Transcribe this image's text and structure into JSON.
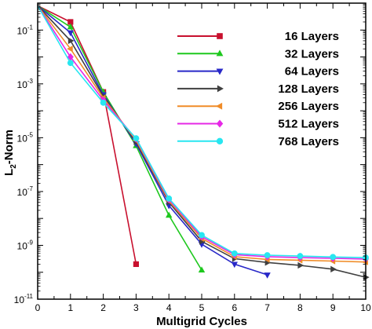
{
  "chart_data": {
    "type": "line",
    "xlabel": "Multigrid Cycles",
    "ylabel": {
      "base": "L",
      "sub": "2",
      "rest": "-Norm"
    },
    "xlim": [
      0,
      10
    ],
    "ylim_exponent": [
      -11,
      0
    ],
    "yscale": "log",
    "x_ticks": [
      0,
      1,
      2,
      3,
      4,
      5,
      6,
      7,
      8,
      9,
      10
    ],
    "y_ticks": [
      {
        "base": "10",
        "exp": "-1",
        "value": 0.1
      },
      {
        "base": "10",
        "exp": "-3",
        "value": 0.001
      },
      {
        "base": "10",
        "exp": "-5",
        "value": 1e-05
      },
      {
        "base": "10",
        "exp": "-7",
        "value": 1e-07
      },
      {
        "base": "10",
        "exp": "-9",
        "value": 1e-09
      },
      {
        "base": "10",
        "exp": "-11",
        "value": 1e-11
      }
    ],
    "legend_position": "top-right",
    "series": [
      {
        "name": "16 Layers",
        "color": "#c8102e",
        "marker": "square",
        "x": [
          0,
          1,
          2,
          3
        ],
        "y": [
          0.8,
          0.2,
          0.0005,
          2e-10
        ]
      },
      {
        "name": "32 Layers",
        "color": "#1ec81e",
        "marker": "triangle-up",
        "x": [
          0,
          1,
          2,
          3,
          4,
          5
        ],
        "y": [
          0.8,
          0.13,
          0.0005,
          5e-06,
          1.3e-08,
          1.2e-10
        ]
      },
      {
        "name": "64 Layers",
        "color": "#2828c8",
        "marker": "triangle-down",
        "x": [
          0,
          1,
          2,
          3,
          4,
          5,
          6,
          7
        ],
        "y": [
          0.8,
          0.08,
          0.0004,
          6e-06,
          3e-08,
          1.1e-09,
          2e-10,
          8e-11
        ]
      },
      {
        "name": "128 Layers",
        "color": "#404040",
        "marker": "triangle-right",
        "x": [
          0,
          1,
          2,
          3,
          4,
          5,
          6,
          7,
          8,
          9,
          10
        ],
        "y": [
          0.8,
          0.04,
          0.00035,
          7e-06,
          4e-08,
          1.4e-09,
          3.2e-10,
          2.3e-10,
          1.8e-10,
          1.3e-10,
          6.5e-11
        ]
      },
      {
        "name": "256 Layers",
        "color": "#f08c28",
        "marker": "triangle-left",
        "x": [
          0,
          1,
          2,
          3,
          4,
          5,
          6,
          7,
          8,
          9,
          10
        ],
        "y": [
          0.8,
          0.02,
          0.0003,
          8e-06,
          4.5e-08,
          1.8e-09,
          3.8e-10,
          3e-10,
          2.8e-10,
          2.6e-10,
          2.4e-10
        ]
      },
      {
        "name": "512 Layers",
        "color": "#e628e6",
        "marker": "diamond",
        "x": [
          0,
          1,
          2,
          3,
          4,
          5,
          6,
          7,
          8,
          9,
          10
        ],
        "y": [
          0.8,
          0.01,
          0.00025,
          9e-06,
          5e-08,
          2.1e-09,
          4.5e-10,
          3.8e-10,
          3.5e-10,
          3.3e-10,
          3.1e-10
        ]
      },
      {
        "name": "768 Layers",
        "color": "#28e6f0",
        "marker": "circle",
        "x": [
          0,
          1,
          2,
          3,
          4,
          5,
          6,
          7,
          8,
          9,
          10
        ],
        "y": [
          0.8,
          0.006,
          0.0002,
          9.5e-06,
          5.5e-08,
          2.4e-09,
          5e-10,
          4.3e-10,
          4e-10,
          3.7e-10,
          3.5e-10
        ]
      }
    ]
  }
}
